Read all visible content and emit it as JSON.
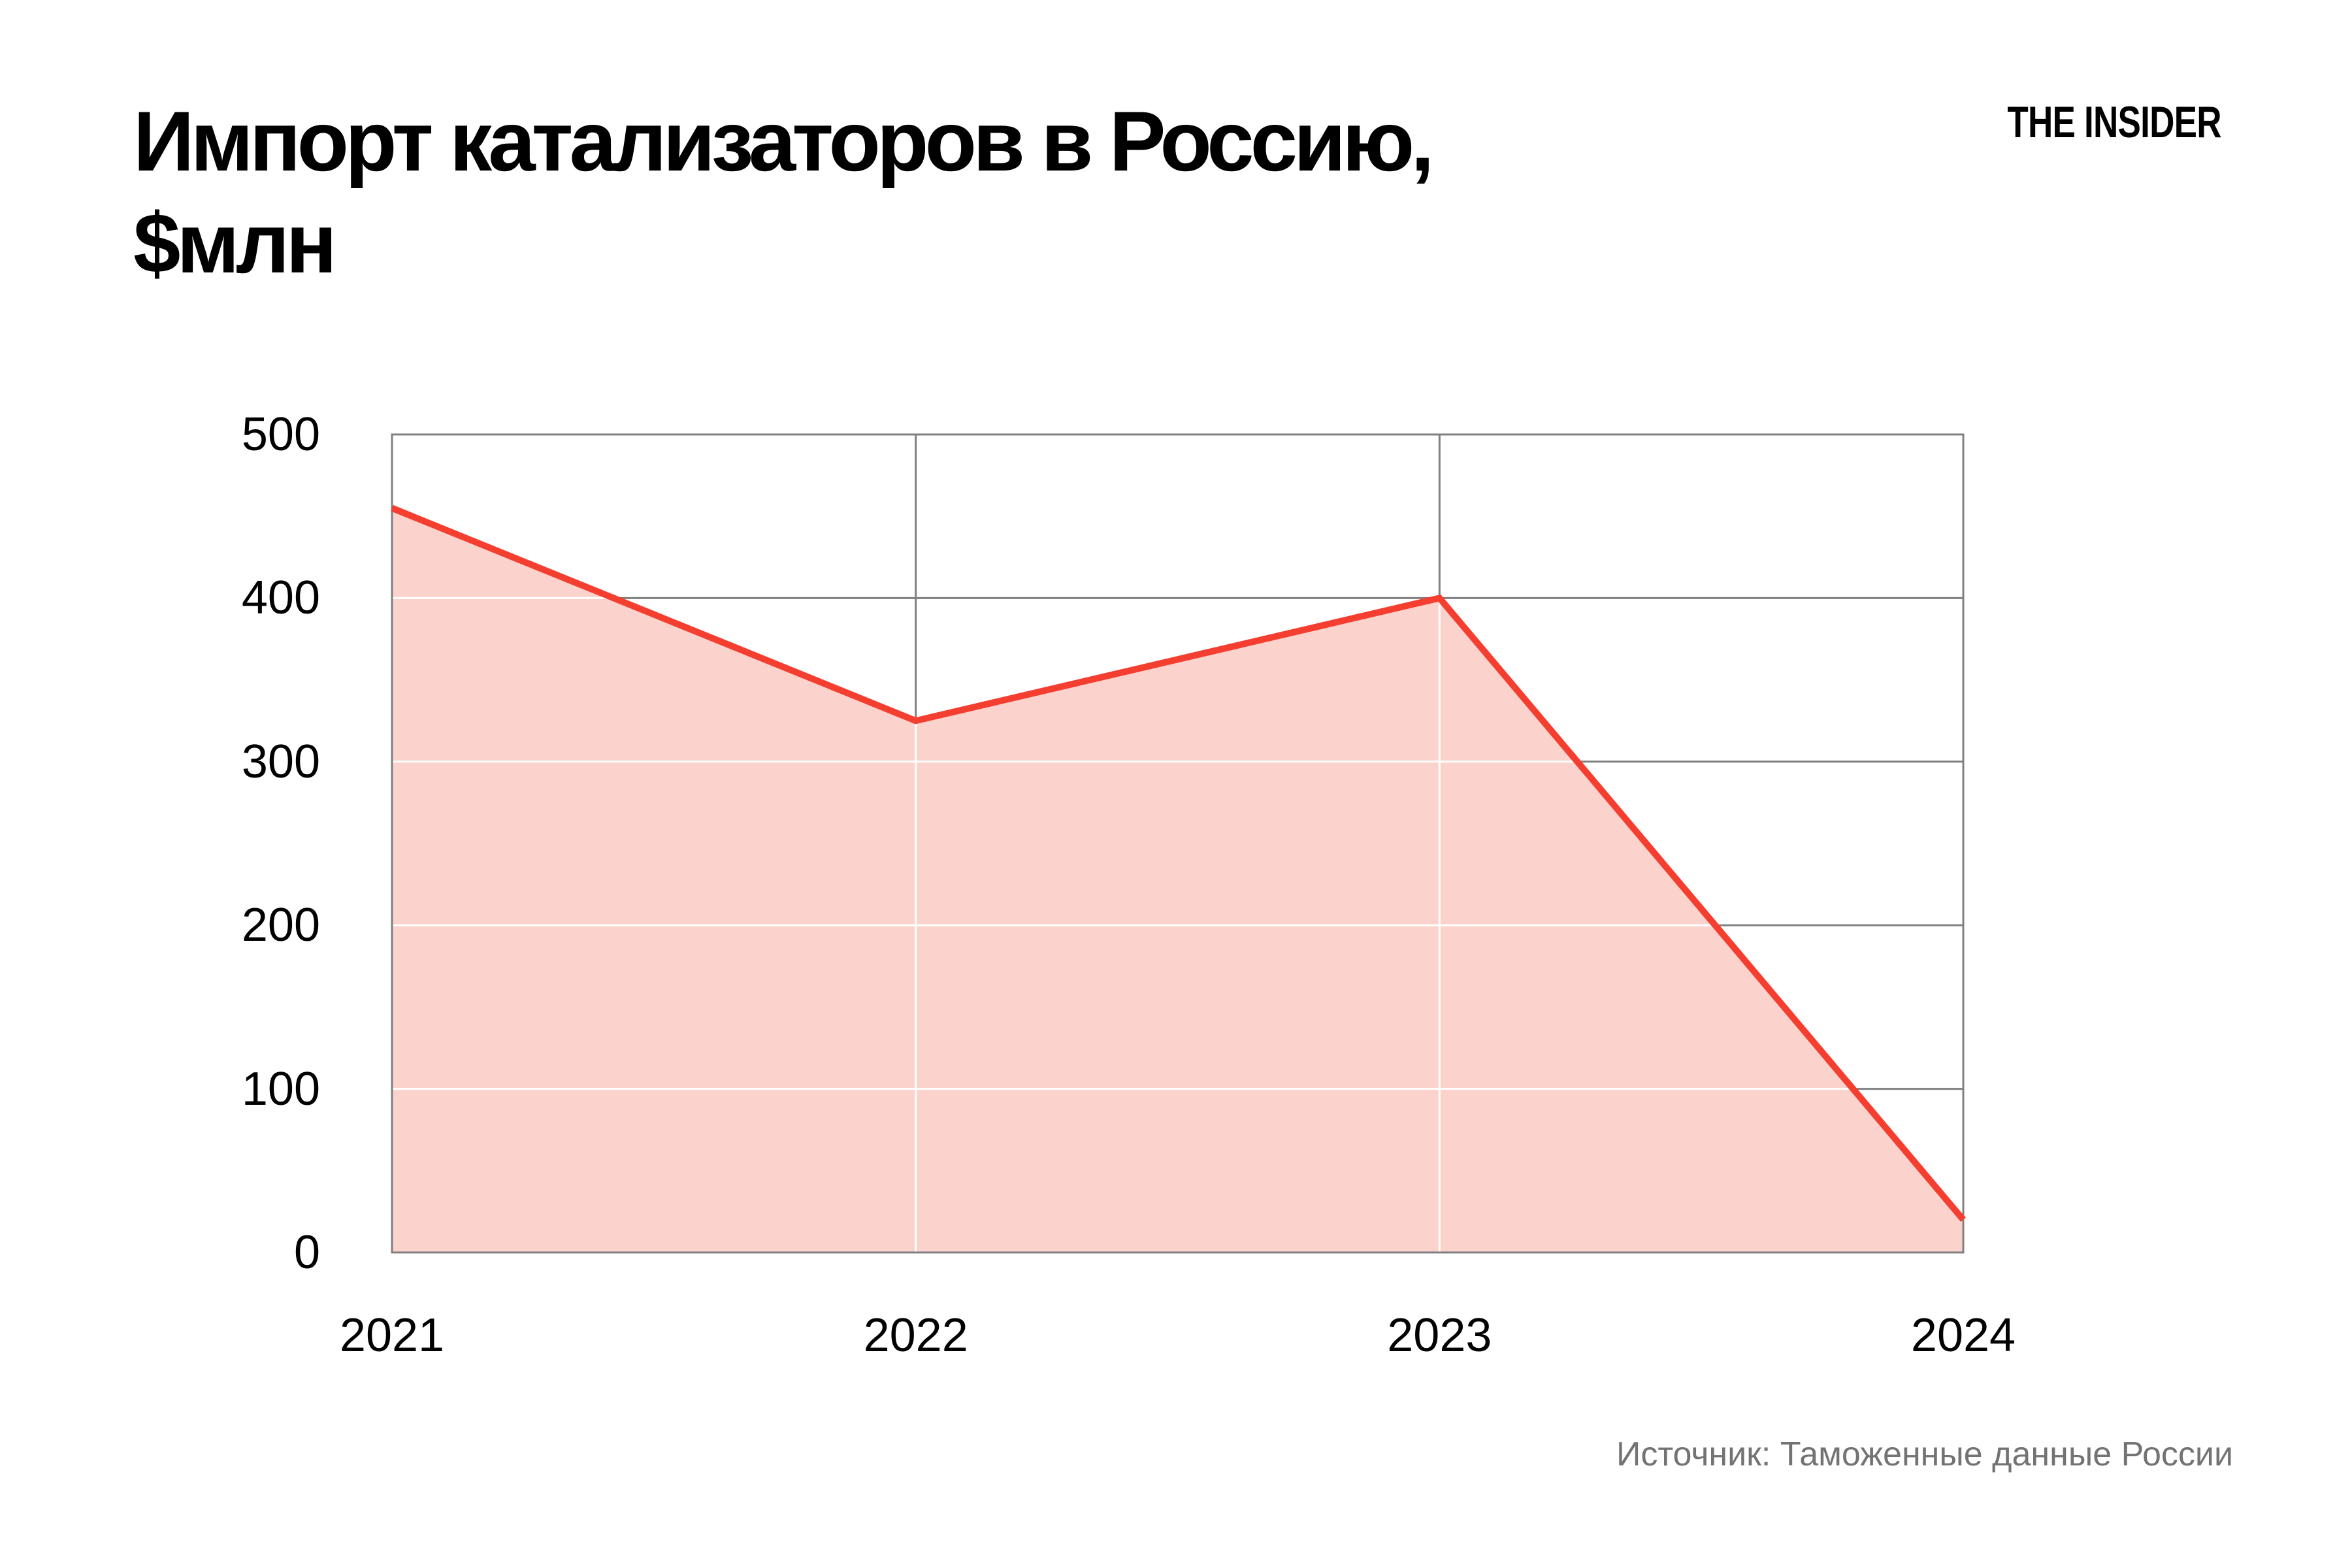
{
  "header": {
    "title_line1": "Импорт катализаторов в Россию,",
    "title_line2": "$млн",
    "logo": "THE INSIDER"
  },
  "footer": {
    "source": "Источник: Таможенные данные России"
  },
  "colors": {
    "line": "#f43e30",
    "area_fill": "#fcd2cc",
    "grid": "#808080",
    "grid_over_area": "#ffffff",
    "tick_text": "#000000",
    "source_text": "#737373"
  },
  "chart_data": {
    "type": "area",
    "title": "Импорт катализаторов в Россию, $млн",
    "ylabel": "$млн",
    "xlabel": "",
    "x": [
      "2021",
      "2022",
      "2023",
      "2024"
    ],
    "values": [
      455,
      325,
      400,
      20
    ],
    "ylim": [
      0,
      500
    ],
    "yticks": [
      0,
      100,
      200,
      300,
      400,
      500
    ],
    "grid": true,
    "legend_position": "none"
  }
}
